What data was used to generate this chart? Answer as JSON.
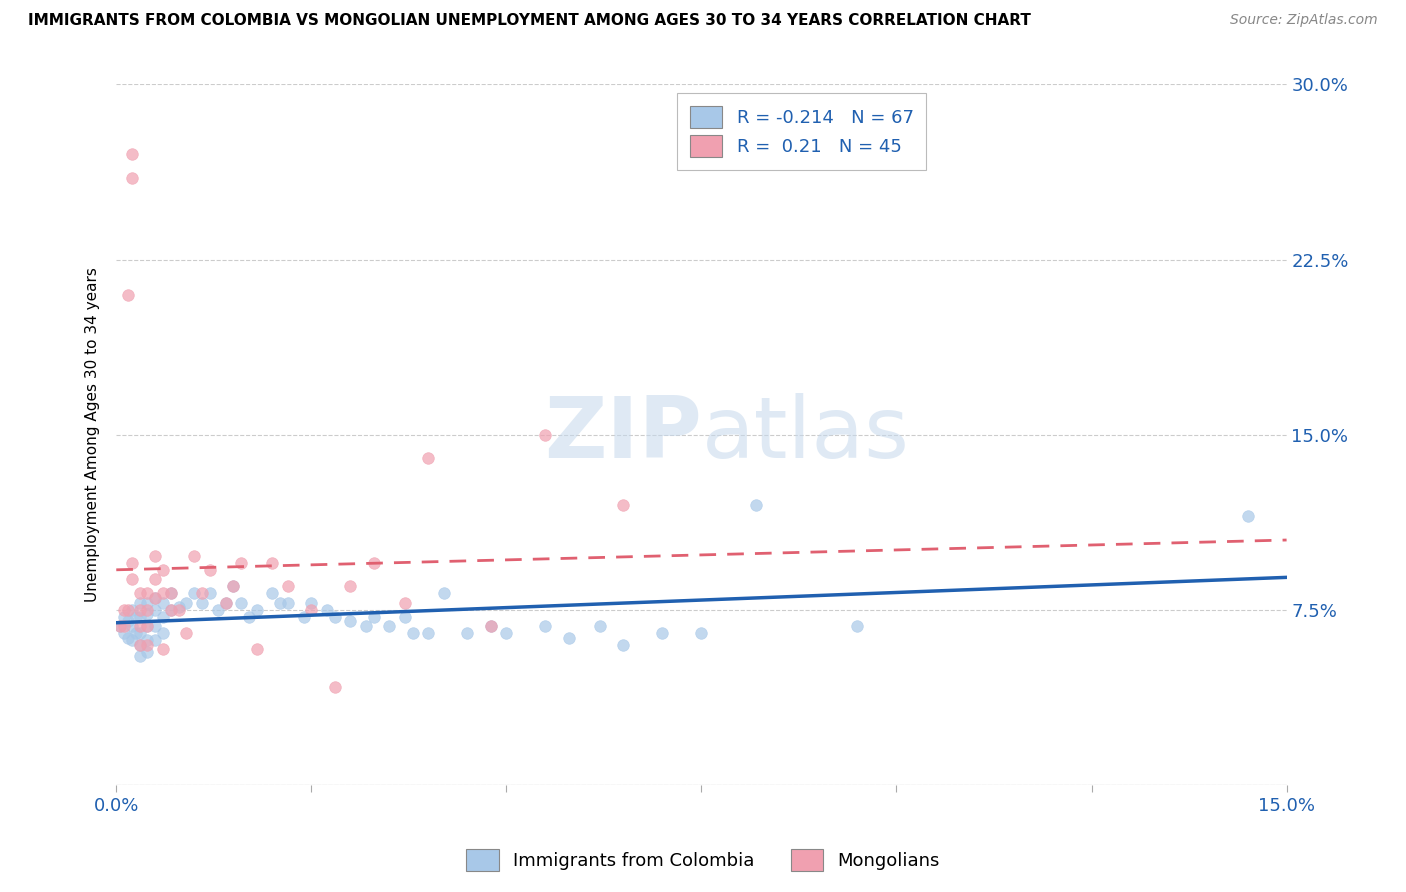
{
  "title": "IMMIGRANTS FROM COLOMBIA VS MONGOLIAN UNEMPLOYMENT AMONG AGES 30 TO 34 YEARS CORRELATION CHART",
  "source": "Source: ZipAtlas.com",
  "ylabel": "Unemployment Among Ages 30 to 34 years",
  "xlim": [
    0.0,
    0.15
  ],
  "ylim": [
    0.0,
    0.3
  ],
  "xtick_positions": [
    0.0,
    0.025,
    0.05,
    0.075,
    0.1,
    0.125,
    0.15
  ],
  "xtick_labels": [
    "0.0%",
    "",
    "",
    "",
    "",
    "",
    "15.0%"
  ],
  "ytick_positions": [
    0.0,
    0.075,
    0.15,
    0.225,
    0.3
  ],
  "ytick_labels_right": [
    "",
    "7.5%",
    "15.0%",
    "22.5%",
    "30.0%"
  ],
  "colombia_color": "#a8c8e8",
  "mongolia_color": "#f0a0b0",
  "colombia_line_color": "#2060b0",
  "mongolia_line_color": "#e06070",
  "R_colombia": -0.214,
  "N_colombia": 67,
  "R_mongolia": 0.21,
  "N_mongolia": 45,
  "watermark": "ZIPatlas",
  "colombia_scatter_x": [
    0.0005,
    0.001,
    0.001,
    0.0015,
    0.0015,
    0.002,
    0.002,
    0.002,
    0.0025,
    0.0025,
    0.003,
    0.003,
    0.003,
    0.003,
    0.003,
    0.004,
    0.004,
    0.004,
    0.004,
    0.004,
    0.005,
    0.005,
    0.005,
    0.005,
    0.006,
    0.006,
    0.006,
    0.007,
    0.007,
    0.008,
    0.009,
    0.01,
    0.011,
    0.012,
    0.013,
    0.014,
    0.015,
    0.016,
    0.017,
    0.018,
    0.02,
    0.021,
    0.022,
    0.024,
    0.025,
    0.027,
    0.028,
    0.03,
    0.032,
    0.033,
    0.035,
    0.037,
    0.038,
    0.04,
    0.042,
    0.045,
    0.048,
    0.05,
    0.055,
    0.058,
    0.062,
    0.065,
    0.07,
    0.075,
    0.082,
    0.095,
    0.145
  ],
  "colombia_scatter_y": [
    0.068,
    0.072,
    0.065,
    0.07,
    0.063,
    0.075,
    0.068,
    0.062,
    0.072,
    0.065,
    0.078,
    0.072,
    0.065,
    0.06,
    0.055,
    0.078,
    0.073,
    0.068,
    0.062,
    0.057,
    0.08,
    0.075,
    0.068,
    0.062,
    0.078,
    0.072,
    0.065,
    0.082,
    0.075,
    0.076,
    0.078,
    0.082,
    0.078,
    0.082,
    0.075,
    0.078,
    0.085,
    0.078,
    0.072,
    0.075,
    0.082,
    0.078,
    0.078,
    0.072,
    0.078,
    0.075,
    0.072,
    0.07,
    0.068,
    0.072,
    0.068,
    0.072,
    0.065,
    0.065,
    0.082,
    0.065,
    0.068,
    0.065,
    0.068,
    0.063,
    0.068,
    0.06,
    0.065,
    0.065,
    0.12,
    0.068,
    0.115
  ],
  "mongolia_scatter_x": [
    0.0005,
    0.001,
    0.001,
    0.0015,
    0.0015,
    0.002,
    0.002,
    0.002,
    0.002,
    0.003,
    0.003,
    0.003,
    0.003,
    0.004,
    0.004,
    0.004,
    0.004,
    0.005,
    0.005,
    0.005,
    0.006,
    0.006,
    0.006,
    0.007,
    0.007,
    0.008,
    0.009,
    0.01,
    0.011,
    0.012,
    0.014,
    0.015,
    0.016,
    0.018,
    0.02,
    0.022,
    0.025,
    0.028,
    0.03,
    0.033,
    0.037,
    0.04,
    0.048,
    0.055,
    0.065
  ],
  "mongolia_scatter_y": [
    0.068,
    0.075,
    0.068,
    0.21,
    0.075,
    0.27,
    0.26,
    0.095,
    0.088,
    0.082,
    0.075,
    0.068,
    0.06,
    0.082,
    0.075,
    0.068,
    0.06,
    0.098,
    0.088,
    0.08,
    0.092,
    0.082,
    0.058,
    0.082,
    0.075,
    0.075,
    0.065,
    0.098,
    0.082,
    0.092,
    0.078,
    0.085,
    0.095,
    0.058,
    0.095,
    0.085,
    0.075,
    0.042,
    0.085,
    0.095,
    0.078,
    0.14,
    0.068,
    0.15,
    0.12
  ]
}
